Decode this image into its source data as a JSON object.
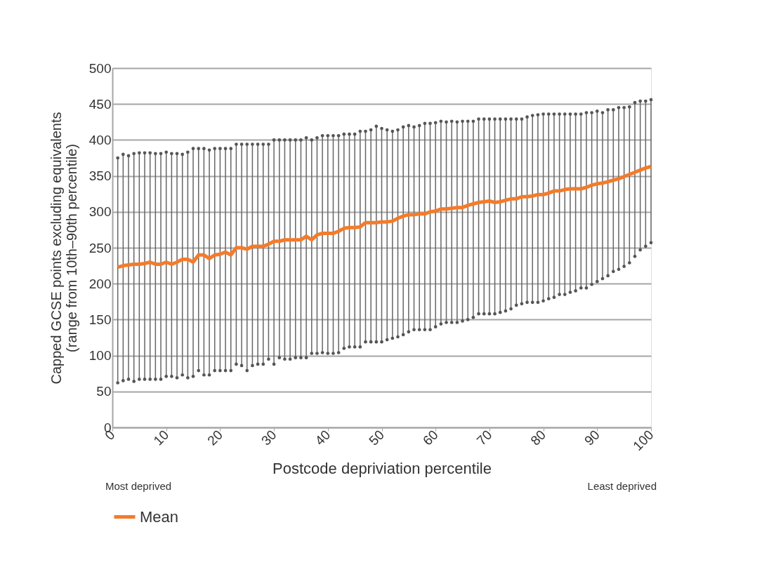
{
  "chart_data": {
    "type": "line",
    "xlabel": "Postcode depriviation percentile",
    "ylabel": "Capped GCSE points excluding equivalents\n(range from 10th–90th percentile)",
    "x": [
      1,
      2,
      3,
      4,
      5,
      6,
      7,
      8,
      9,
      10,
      11,
      12,
      13,
      14,
      15,
      16,
      17,
      18,
      19,
      20,
      21,
      22,
      23,
      24,
      25,
      26,
      27,
      28,
      29,
      30,
      31,
      32,
      33,
      34,
      35,
      36,
      37,
      38,
      39,
      40,
      41,
      42,
      43,
      44,
      45,
      46,
      47,
      48,
      49,
      50,
      51,
      52,
      53,
      54,
      55,
      56,
      57,
      58,
      59,
      60,
      61,
      62,
      63,
      64,
      65,
      66,
      67,
      68,
      69,
      70,
      71,
      72,
      73,
      74,
      75,
      76,
      77,
      78,
      79,
      80,
      81,
      82,
      83,
      84,
      85,
      86,
      87,
      88,
      89,
      90,
      91,
      92,
      93,
      94,
      95,
      96,
      97,
      98,
      99,
      100
    ],
    "series": [
      {
        "name": "Mean",
        "color": "#f47b2a",
        "values": [
          223,
          225,
          226,
          227,
          227,
          228,
          230,
          227,
          227,
          230,
          227,
          230,
          234,
          234,
          230,
          240,
          240,
          235,
          240,
          241,
          244,
          240,
          250,
          250,
          248,
          252,
          252,
          252,
          255,
          259,
          259,
          261,
          261,
          261,
          261,
          266,
          261,
          268,
          270,
          270,
          270,
          273,
          277,
          278,
          278,
          279,
          285,
          285,
          285,
          286,
          286,
          287,
          291,
          294,
          296,
          296,
          297,
          297,
          300,
          301,
          304,
          304,
          305,
          306,
          306,
          309,
          311,
          313,
          314,
          315,
          313,
          314,
          316,
          318,
          318,
          321,
          321,
          322,
          324,
          324,
          326,
          329,
          329,
          331,
          332,
          332,
          332,
          334,
          337,
          339,
          340,
          342,
          344,
          346,
          349,
          352,
          355,
          358,
          361,
          363
        ],
        "errors": [
          [
            62,
            375
          ],
          [
            65,
            380
          ],
          [
            67,
            378
          ],
          [
            64,
            381
          ],
          [
            67,
            382
          ],
          [
            67,
            382
          ],
          [
            67,
            382
          ],
          [
            67,
            381
          ],
          [
            67,
            381
          ],
          [
            71,
            383
          ],
          [
            71,
            381
          ],
          [
            69,
            381
          ],
          [
            73,
            380
          ],
          [
            69,
            383
          ],
          [
            71,
            388
          ],
          [
            79,
            388
          ],
          [
            73,
            388
          ],
          [
            73,
            386
          ],
          [
            79,
            388
          ],
          [
            79,
            388
          ],
          [
            79,
            388
          ],
          [
            79,
            388
          ],
          [
            88,
            394
          ],
          [
            86,
            394
          ],
          [
            79,
            394
          ],
          [
            86,
            394
          ],
          [
            88,
            394
          ],
          [
            88,
            394
          ],
          [
            95,
            394
          ],
          [
            88,
            400
          ],
          [
            97,
            400
          ],
          [
            95,
            400
          ],
          [
            95,
            400
          ],
          [
            97,
            400
          ],
          [
            97,
            400
          ],
          [
            97,
            403
          ],
          [
            103,
            400
          ],
          [
            103,
            403
          ],
          [
            104,
            406
          ],
          [
            103,
            406
          ],
          [
            103,
            406
          ],
          [
            104,
            406
          ],
          [
            110,
            408
          ],
          [
            112,
            408
          ],
          [
            112,
            408
          ],
          [
            112,
            412
          ],
          [
            119,
            412
          ],
          [
            119,
            414
          ],
          [
            119,
            419
          ],
          [
            119,
            416
          ],
          [
            122,
            414
          ],
          [
            124,
            412
          ],
          [
            126,
            414
          ],
          [
            129,
            418
          ],
          [
            133,
            420
          ],
          [
            136,
            418
          ],
          [
            136,
            420
          ],
          [
            136,
            423
          ],
          [
            136,
            423
          ],
          [
            140,
            424
          ],
          [
            144,
            426
          ],
          [
            146,
            425
          ],
          [
            146,
            426
          ],
          [
            146,
            425
          ],
          [
            148,
            426
          ],
          [
            150,
            426
          ],
          [
            153,
            426
          ],
          [
            158,
            429
          ],
          [
            158,
            429
          ],
          [
            158,
            429
          ],
          [
            158,
            429
          ],
          [
            160,
            429
          ],
          [
            162,
            429
          ],
          [
            165,
            429
          ],
          [
            170,
            429
          ],
          [
            172,
            429
          ],
          [
            174,
            432
          ],
          [
            174,
            434
          ],
          [
            174,
            435
          ],
          [
            176,
            436
          ],
          [
            179,
            436
          ],
          [
            181,
            436
          ],
          [
            185,
            436
          ],
          [
            185,
            436
          ],
          [
            188,
            436
          ],
          [
            190,
            436
          ],
          [
            194,
            436
          ],
          [
            194,
            438
          ],
          [
            199,
            438
          ],
          [
            203,
            440
          ],
          [
            207,
            438
          ],
          [
            211,
            442
          ],
          [
            217,
            442
          ],
          [
            220,
            445
          ],
          [
            224,
            445
          ],
          [
            229,
            446
          ],
          [
            238,
            452
          ],
          [
            247,
            454
          ],
          [
            252,
            454
          ],
          [
            257,
            456
          ]
        ]
      }
    ],
    "xlim": [
      0,
      100
    ],
    "xticks": [
      0,
      10,
      20,
      30,
      40,
      50,
      60,
      70,
      80,
      90,
      100
    ],
    "ylim": [
      0,
      500
    ],
    "yticks": [
      0,
      50,
      100,
      150,
      200,
      250,
      300,
      350,
      400,
      450,
      500
    ],
    "grid": "y",
    "legend": "bottom",
    "annotations": [
      "Most deprived",
      "Least deprived"
    ]
  }
}
